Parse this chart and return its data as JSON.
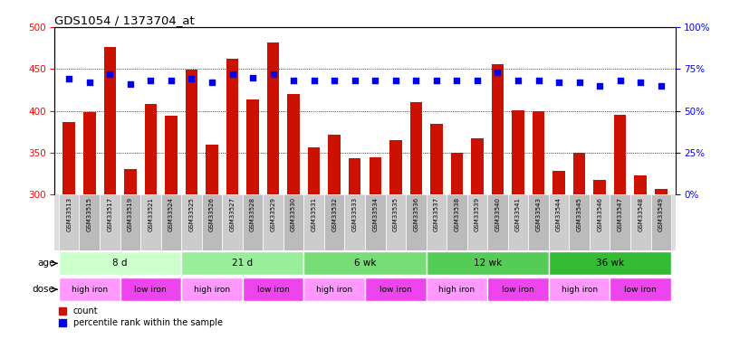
{
  "title": "GDS1054 / 1373704_at",
  "samples": [
    "GSM33513",
    "GSM33515",
    "GSM33517",
    "GSM33519",
    "GSM33521",
    "GSM33524",
    "GSM33525",
    "GSM33526",
    "GSM33527",
    "GSM33528",
    "GSM33529",
    "GSM33530",
    "GSM33531",
    "GSM33532",
    "GSM33533",
    "GSM33534",
    "GSM33535",
    "GSM33536",
    "GSM33537",
    "GSM33538",
    "GSM33539",
    "GSM33540",
    "GSM33541",
    "GSM33543",
    "GSM33544",
    "GSM33545",
    "GSM33546",
    "GSM33547",
    "GSM33548",
    "GSM33549"
  ],
  "counts": [
    387,
    398,
    476,
    331,
    408,
    394,
    449,
    360,
    462,
    414,
    482,
    420,
    356,
    372,
    343,
    344,
    365,
    410,
    384,
    350,
    367,
    456,
    401,
    400,
    328,
    350,
    317,
    395,
    323,
    307
  ],
  "percentile_ranks": [
    69,
    67,
    72,
    66,
    68,
    68,
    69,
    67,
    72,
    70,
    72,
    68,
    68,
    68,
    68,
    68,
    68,
    68,
    68,
    68,
    68,
    73,
    68,
    68,
    67,
    67,
    65,
    68,
    67,
    65
  ],
  "ylim_left": [
    300,
    500
  ],
  "ylim_right": [
    0,
    100
  ],
  "yticks_left": [
    300,
    350,
    400,
    450,
    500
  ],
  "yticks_right": [
    0,
    25,
    50,
    75,
    100
  ],
  "bar_color": "#cc1100",
  "dot_color": "#0000ee",
  "background_color": "#ffffff",
  "age_groups": [
    {
      "label": "8 d",
      "start": 0,
      "end": 6,
      "color": "#ccffcc"
    },
    {
      "label": "21 d",
      "start": 6,
      "end": 12,
      "color": "#99ee99"
    },
    {
      "label": "6 wk",
      "start": 12,
      "end": 18,
      "color": "#77dd77"
    },
    {
      "label": "12 wk",
      "start": 18,
      "end": 24,
      "color": "#55cc55"
    },
    {
      "label": "36 wk",
      "start": 24,
      "end": 30,
      "color": "#33bb33"
    }
  ],
  "dose_groups": [
    {
      "label": "high iron",
      "start": 0,
      "end": 3,
      "color": "#ff99ff"
    },
    {
      "label": "low iron",
      "start": 3,
      "end": 6,
      "color": "#ee44ee"
    },
    {
      "label": "high iron",
      "start": 6,
      "end": 9,
      "color": "#ff99ff"
    },
    {
      "label": "low iron",
      "start": 9,
      "end": 12,
      "color": "#ee44ee"
    },
    {
      "label": "high iron",
      "start": 12,
      "end": 15,
      "color": "#ff99ff"
    },
    {
      "label": "low iron",
      "start": 15,
      "end": 18,
      "color": "#ee44ee"
    },
    {
      "label": "high iron",
      "start": 18,
      "end": 21,
      "color": "#ff99ff"
    },
    {
      "label": "low iron",
      "start": 21,
      "end": 24,
      "color": "#ee44ee"
    },
    {
      "label": "high iron",
      "start": 24,
      "end": 27,
      "color": "#ff99ff"
    },
    {
      "label": "low iron",
      "start": 27,
      "end": 30,
      "color": "#ee44ee"
    }
  ],
  "legend_count_color": "#cc1100",
  "legend_pct_color": "#0000ee",
  "label_age": "age",
  "label_dose": "dose"
}
